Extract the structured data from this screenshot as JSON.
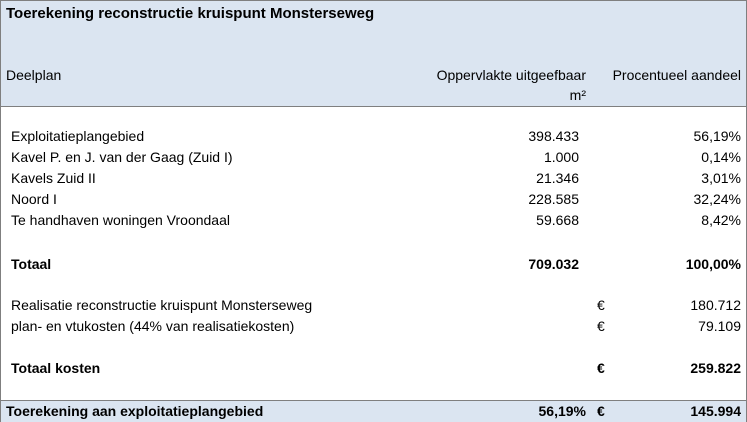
{
  "title": "Toerekening reconstructie kruispunt Monsterseweg",
  "columns": {
    "deelplan": "Deelplan",
    "oppervlakte_line1": "Oppervlakte uitgeefbaar",
    "oppervlakte_line2": "m²",
    "aandeel": "Procentueel aandeel"
  },
  "rows": [
    {
      "label": "Exploitatieplangebied",
      "area": "398.433",
      "pct": "56,19%"
    },
    {
      "label": "Kavel P. en J. van der Gaag (Zuid I)",
      "area": "1.000",
      "pct": "0,14%"
    },
    {
      "label": "Kavels Zuid II",
      "area": "21.346",
      "pct": "3,01%"
    },
    {
      "label": "Noord I",
      "area": "228.585",
      "pct": "32,24%"
    },
    {
      "label": "Te handhaven woningen Vroondaal",
      "area": "59.668",
      "pct": "8,42%"
    }
  ],
  "totaal": {
    "label": "Totaal",
    "area": "709.032",
    "pct": "100,00%"
  },
  "costs": [
    {
      "label": "Realisatie reconstructie kruispunt Monsterseweg",
      "currency": "€",
      "amount": "180.712"
    },
    {
      "label": "plan- en vtukosten (44% van realisatiekosten)",
      "currency": "€",
      "amount": "79.109"
    }
  ],
  "totaal_kosten": {
    "label": "Totaal kosten",
    "currency": "€",
    "amount": "259.822"
  },
  "footer": {
    "label": "Toerekening aan exploitatieplangebied",
    "pct": "56,19%",
    "currency": "€",
    "amount": "145.994"
  }
}
